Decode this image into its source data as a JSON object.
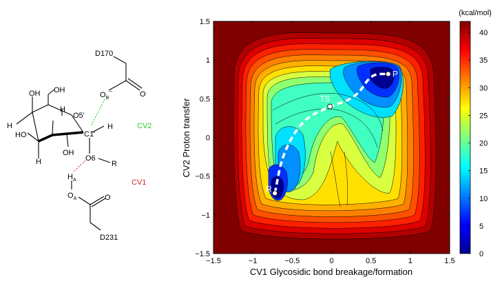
{
  "molecule": {
    "labels": {
      "d170": "D170",
      "ob": "O",
      "ob_sub": "B",
      "ob_sup": "−",
      "o_carbonyl_top": "O",
      "o5": "O5'",
      "c1": "C1'",
      "h_c1": "H",
      "o6": "O6",
      "r": "R",
      "ha": "H",
      "ha_sub": "A",
      "oa": "O",
      "oa_sub": "A",
      "o_carbonyl_bottom": "O",
      "d231": "D231",
      "oh_top_left": "OH",
      "oh_top_right": "OH",
      "h_top_ring": "H",
      "h_left": "H",
      "ho_left": "HO",
      "h_bottom_left": "H",
      "oh_bottom": "OH"
    },
    "cv2_label": "CV2",
    "cv1_label": "CV1",
    "colors": {
      "cv2": "#22cc22",
      "cv1": "#dd2222"
    }
  },
  "chart_data": {
    "type": "heatmap",
    "title": "",
    "xlabel": "CV1 Glycosidic bond breakage/formation",
    "ylabel": "CV2 Proton transfer",
    "xlim": [
      -1.5,
      1.5
    ],
    "ylim": [
      -1.5,
      1.5
    ],
    "x_ticks": [
      -1.5,
      -1,
      -0.5,
      0,
      0.5,
      1,
      1.5
    ],
    "x_tick_labels": [
      "−1.5",
      "−1",
      "−0.5",
      "0",
      "0.5",
      "1",
      "1.5"
    ],
    "y_ticks": [
      1.5,
      1,
      0.5,
      0,
      -0.5,
      -1,
      -1.5
    ],
    "y_tick_labels": [
      "1.5",
      "1",
      "0.5",
      "0",
      "−0.5",
      "−1",
      "−1.5"
    ],
    "colorbar": {
      "unit_label": "(kcal/mol)",
      "range": [
        0,
        42
      ],
      "ticks": [
        0,
        5,
        10,
        15,
        20,
        25,
        30,
        35,
        40
      ],
      "tick_labels": [
        "0",
        "5",
        "10",
        "15",
        "20",
        "25",
        "30",
        "35",
        "40"
      ]
    },
    "minima": [
      {
        "label": "R",
        "x": -0.72,
        "y": -0.72,
        "energy": 0
      },
      {
        "label": "TS",
        "x": -0.02,
        "y": 0.4,
        "energy": 20
      },
      {
        "label": "P",
        "x": 0.72,
        "y": 0.82,
        "energy": 0
      }
    ],
    "path": [
      {
        "x": -0.72,
        "y": -0.72
      },
      {
        "x": -0.62,
        "y": -0.2
      },
      {
        "x": -0.36,
        "y": 0.24
      },
      {
        "x": -0.02,
        "y": 0.4
      },
      {
        "x": 0.32,
        "y": 0.52
      },
      {
        "x": 0.5,
        "y": 0.82
      },
      {
        "x": 0.72,
        "y": 0.82
      }
    ]
  }
}
